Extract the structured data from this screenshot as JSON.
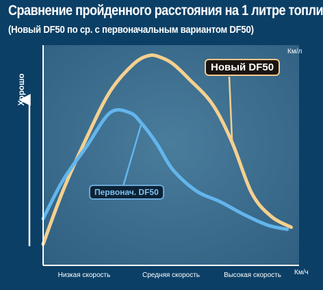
{
  "title": "Сравнение пройденного расстояния на 1 литре топлива",
  "subtitle": "(Новый DF50 по ср. с первоначальным вариантом DF50)",
  "y_side_label": "Хорошо",
  "colors": {
    "background": "#0b3f66",
    "plot_panel": "#3e6f8f",
    "new_series": "#f5d08f",
    "original_series": "#63b5ec",
    "axis": "#ffffff"
  },
  "chart_data": {
    "type": "line",
    "title": "Сравнение пройденного расстояния на 1 литре топлива",
    "subtitle": "(Новый DF50 по ср. с первоначальным вариантом DF50)",
    "ylabel": "Км/л",
    "xlabel": "Км/ч",
    "x_ticks": [
      "Низкая скорость",
      "Средняя скорость",
      "Высокая скорость"
    ],
    "x_tick_positions": [
      0.5,
      1.5,
      2.5
    ],
    "xlim": [
      -0.15,
      3.1
    ],
    "ylim": [
      0,
      1
    ],
    "y_tick_values": "none",
    "grid": false,
    "series": [
      {
        "name": "Новый DF50",
        "color": "#f5d08f",
        "x": [
          -0.15,
          0.1,
          0.4,
          0.7,
          1.0,
          1.2,
          1.35,
          1.5,
          1.7,
          2.0,
          2.25,
          2.5,
          2.75,
          3.0
        ],
        "y": [
          0.1,
          0.35,
          0.6,
          0.82,
          0.95,
          0.99,
          0.98,
          0.95,
          0.88,
          0.76,
          0.58,
          0.34,
          0.23,
          0.18
        ]
      },
      {
        "name": "Первонач. DF50",
        "color": "#63b5ec",
        "x": [
          -0.15,
          0.1,
          0.4,
          0.7,
          0.95,
          1.1,
          1.3,
          1.5,
          1.8,
          2.1,
          2.4,
          2.7,
          2.95
        ],
        "y": [
          0.22,
          0.4,
          0.56,
          0.72,
          0.72,
          0.67,
          0.57,
          0.45,
          0.35,
          0.3,
          0.24,
          0.19,
          0.17
        ]
      }
    ],
    "annotations": [
      {
        "text": "Новый DF50",
        "series": "Новый DF50"
      },
      {
        "text": "Первонач. DF50",
        "series": "Первонач. DF50"
      }
    ]
  }
}
